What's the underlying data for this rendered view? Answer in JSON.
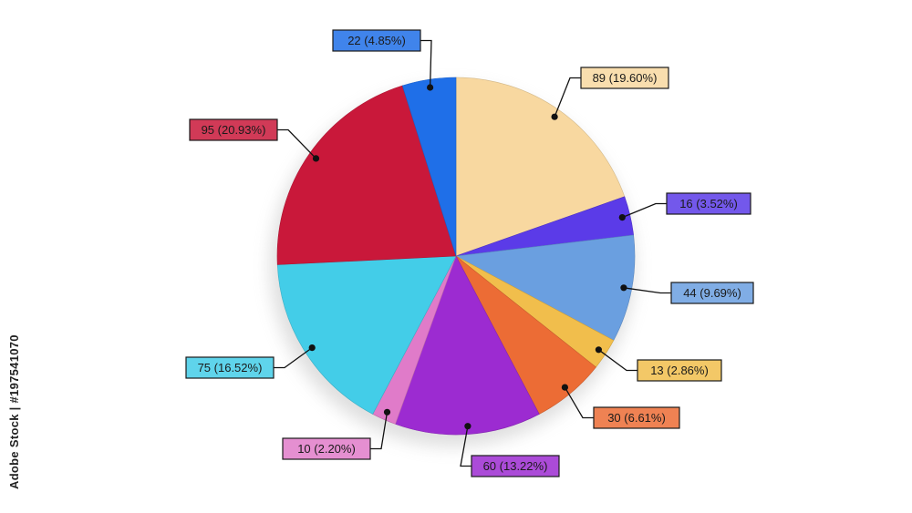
{
  "watermark_text": "Adobe Stock | #197541070",
  "chart_data": {
    "type": "pie",
    "title": "",
    "start_angle_deg": 0,
    "direction": "clockwise",
    "slices": [
      {
        "value": 89,
        "label": "89 (19.60%)",
        "color": "#F8D8A0"
      },
      {
        "value": 16,
        "label": "16 (3.52%)",
        "color": "#5B3BE8"
      },
      {
        "value": 44,
        "label": "44 (9.69%)",
        "color": "#6A9FE0"
      },
      {
        "value": 13,
        "label": "13 (2.86%)",
        "color": "#F1BE4C"
      },
      {
        "value": 30,
        "label": "30 (6.61%)",
        "color": "#EC6C35"
      },
      {
        "value": 60,
        "label": "60 (13.22%)",
        "color": "#9C2BD1"
      },
      {
        "value": 10,
        "label": "10 (2.20%)",
        "color": "#E07BC9"
      },
      {
        "value": 75,
        "label": "75 (16.52%)",
        "color": "#43CDE8"
      },
      {
        "value": 95,
        "label": "95 (20.93%)",
        "color": "#C9183A"
      },
      {
        "value": 22,
        "label": "22 (4.85%)",
        "color": "#1F6FE8"
      }
    ]
  }
}
